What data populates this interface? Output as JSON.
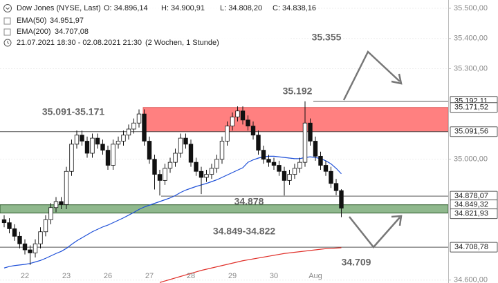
{
  "chart_data": {
    "type": "candlestick",
    "title": "Dow Jones (NYSE, Last)",
    "quote": [
      {
        "value": 34896.14,
        "label": "O: 34.896,14"
      },
      {
        "value": 34900.91,
        "label": "H: 34.900,91"
      },
      {
        "value": 34808.2,
        "label": "L: 34.808,20"
      },
      {
        "value": 34838.16,
        "label": "C: 34.838,16"
      }
    ],
    "range_text": "21.07.2021 18:30 - 02.08.2021 21:30",
    "interval_text": "(2 Wochen, 1 Stunde)",
    "categories": [
      null,
      null,
      null,
      null,
      "22",
      null,
      null,
      null,
      null,
      null,
      null,
      null,
      "23",
      null,
      null,
      null,
      null,
      null,
      null,
      null,
      "26",
      null,
      null,
      null,
      null,
      null,
      null,
      null,
      "27",
      null,
      null,
      null,
      null,
      null,
      null,
      null,
      "28",
      null,
      null,
      null,
      null,
      null,
      null,
      null,
      "29",
      null,
      null,
      null,
      null,
      null,
      null,
      null,
      "30",
      null,
      null,
      null,
      null,
      null,
      null,
      null,
      "Aug",
      null,
      null,
      null,
      null,
      null
    ],
    "open": [
      34800,
      34790,
      34770,
      34745,
      34720,
      34700,
      34690,
      34720,
      34760,
      34800,
      34840,
      34860,
      34850,
      34960,
      35050,
      35080,
      35060,
      35020,
      35070,
      35050,
      35030,
      34980,
      35050,
      35060,
      35080,
      35100,
      35120,
      35150,
      35060,
      35000,
      34950,
      34930,
      34970,
      34990,
      35020,
      35070,
      35050,
      34990,
      34960,
      34940,
      34950,
      34970,
      35000,
      35060,
      35110,
      35140,
      35160,
      35130,
      35110,
      35080,
      35030,
      35000,
      34990,
      34980,
      34960,
      34930,
      34950,
      34970,
      34990,
      35120,
      35060,
      35010,
      34980,
      34960,
      34920,
      34896.14
    ],
    "high": [
      34815,
      34805,
      34785,
      34760,
      34735,
      34715,
      34735,
      34775,
      34815,
      34855,
      34875,
      34875,
      34975,
      35065,
      35095,
      35095,
      35075,
      35085,
      35085,
      35065,
      35045,
      35065,
      35075,
      35095,
      35115,
      35135,
      35165,
      35165,
      35075,
      35015,
      34965,
      34985,
      35005,
      35035,
      35085,
      35085,
      35065,
      35005,
      34975,
      34965,
      34985,
      35015,
      35075,
      35125,
      35155,
      35175,
      35175,
      35145,
      35125,
      35095,
      35045,
      35015,
      35005,
      34995,
      34975,
      34965,
      34985,
      35005,
      35192.11,
      35135,
      35075,
      35025,
      34995,
      34975,
      34935,
      34900.91
    ],
    "low": [
      34775,
      34755,
      34730,
      34705,
      34685,
      34650,
      34675,
      34705,
      34745,
      34785,
      34825,
      34835,
      34835,
      34945,
      35035,
      35045,
      35005,
      35005,
      35035,
      35015,
      34965,
      34965,
      35035,
      35045,
      35065,
      35085,
      35105,
      35045,
      34985,
      34900,
      34880,
      34915,
      34955,
      34975,
      35005,
      35035,
      34975,
      34945,
      34885,
      34925,
      34935,
      34955,
      34985,
      35045,
      35095,
      35125,
      35115,
      35095,
      35065,
      35015,
      34985,
      34975,
      34965,
      34945,
      34880,
      34915,
      34935,
      34955,
      34975,
      35045,
      34995,
      34965,
      34945,
      34905,
      34881,
      34808.2
    ],
    "close": [
      34790,
      34770,
      34745,
      34720,
      34700,
      34690,
      34720,
      34760,
      34800,
      34840,
      34860,
      34850,
      34960,
      35050,
      35080,
      35060,
      35020,
      35070,
      35050,
      35030,
      34980,
      35050,
      35060,
      35080,
      35100,
      35120,
      35150,
      35060,
      35000,
      34950,
      34930,
      34970,
      34990,
      35020,
      35070,
      35050,
      34990,
      34960,
      34940,
      34950,
      34970,
      35000,
      35060,
      35110,
      35140,
      35160,
      35130,
      35110,
      35080,
      35030,
      35000,
      34990,
      34980,
      34960,
      34930,
      34950,
      34970,
      34990,
      35120,
      35060,
      35010,
      34980,
      34960,
      34920,
      34896.14,
      34838.16
    ],
    "up_color": "#ffffff",
    "down_color": "#111111",
    "series": [
      {
        "name": "EMA(50)",
        "color": "#1d4fd8",
        "last": {
          "value": 34951.97,
          "label": "34.951,97"
        },
        "values": [
          34640,
          34645,
          34648,
          34650,
          34652,
          34655,
          34660,
          34665,
          34672,
          34680,
          34688,
          34695,
          34705,
          34718,
          34730,
          34740,
          34750,
          34760,
          34768,
          34776,
          34782,
          34790,
          34798,
          34806,
          34815,
          34824,
          34834,
          34842,
          34848,
          34854,
          34860,
          34866,
          34872,
          34880,
          34890,
          34898,
          34904,
          34910,
          34915,
          34920,
          34926,
          34932,
          34940,
          34948,
          34956,
          34964,
          34972,
          34990,
          34998,
          35004,
          35008,
          35010,
          35010,
          35008,
          35006,
          35004,
          35002,
          35002,
          35006,
          35008,
          35006,
          35002,
          34995,
          34985,
          34970,
          34951.97
        ]
      },
      {
        "name": "EMA(200)",
        "color": "#e0302a",
        "last": {
          "value": 34707.08,
          "label": "34.707,08"
        },
        "values": [
          null,
          null,
          null,
          null,
          null,
          null,
          null,
          null,
          null,
          null,
          null,
          null,
          null,
          null,
          null,
          null,
          null,
          null,
          null,
          null,
          null,
          null,
          null,
          null,
          null,
          null,
          null,
          null,
          null,
          null,
          34592,
          34597,
          34602,
          34607,
          34612,
          34617,
          34622,
          34627,
          34632,
          34636,
          34640,
          34644,
          34648,
          34652,
          34656,
          34660,
          34664,
          34667,
          34670,
          34673,
          34676,
          34679,
          34682,
          34685,
          34688,
          34690,
          34692,
          34694,
          34696,
          34698,
          34700,
          34702,
          34704,
          34705,
          34706,
          34707.08
        ]
      }
    ],
    "ylim": [
      34590.3,
      35527.4
    ],
    "yticks": [
      {
        "value": 35500,
        "label": "35.500,00"
      },
      {
        "value": 35400,
        "label": "35.400,00"
      },
      {
        "value": 35300,
        "label": "35.300,00"
      },
      {
        "value": 35000,
        "label": "35.000,00"
      },
      {
        "value": 34600,
        "label": "34.600,00"
      }
    ],
    "grid": true,
    "zones": [
      {
        "from": 35091.56,
        "to": 35171.52,
        "color": "#ff8080"
      },
      {
        "from": 34821.93,
        "to": 34849.32,
        "color": "#8fb88d"
      }
    ],
    "levels": [
      {
        "value": 35192.11,
        "label": "35.192,11"
      },
      {
        "value": 35171.52,
        "label": "35.171,52"
      },
      {
        "value": 35091.56,
        "label": "35.091,56"
      },
      {
        "value": 34878.07,
        "label": "34.878,07"
      },
      {
        "value": 34849.32,
        "label": "34.849,32"
      },
      {
        "value": 34821.93,
        "label": "34.821,93"
      },
      {
        "value": 34708.78,
        "label": "34.708,78"
      }
    ],
    "annotations": [
      "35.355",
      "35.192",
      "35.091-35.171",
      "34.878",
      "34.849-34.822",
      "34.709"
    ]
  }
}
